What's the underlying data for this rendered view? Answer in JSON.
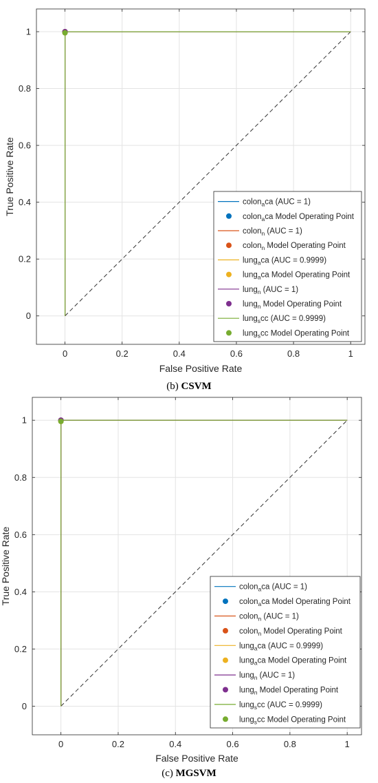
{
  "chart_data": [
    {
      "type": "line",
      "caption_prefix": "(b)",
      "caption_name": "CSVM",
      "xlabel": "False Positive Rate",
      "ylabel": "True Positive Rate",
      "xlim": [
        -0.1,
        1.05
      ],
      "ylim": [
        -0.1,
        1.08
      ],
      "xticks": [
        "0",
        "0.2",
        "0.4",
        "0.6",
        "0.8",
        "1"
      ],
      "xtick_values": [
        0,
        0.2,
        0.4,
        0.6,
        0.8,
        1
      ],
      "yticks": [
        "0",
        "0.2",
        "0.4",
        "0.6",
        "0.8",
        "1"
      ],
      "ytick_values": [
        0,
        0.2,
        0.4,
        0.6,
        0.8,
        1
      ],
      "grid": true,
      "legend_position": "bottom-right",
      "diagonal": {
        "x": [
          0,
          1
        ],
        "y": [
          0,
          1
        ],
        "color": "#333333"
      },
      "series": [
        {
          "base": "colon",
          "sub": "a",
          "rest": "ca",
          "label_suffix": " (AUC = 1)",
          "point_suffix": " Model Operating Point",
          "color": "#0072BD",
          "x": [
            0,
            0,
            1
          ],
          "y": [
            0,
            1,
            1
          ],
          "point": [
            0,
            1
          ]
        },
        {
          "base": "colon",
          "sub": "n",
          "rest": "",
          "label_suffix": " (AUC = 1)",
          "point_suffix": " Model Operating Point",
          "color": "#D95319",
          "x": [
            0,
            0,
            1
          ],
          "y": [
            0,
            1,
            1
          ],
          "point": [
            0,
            1
          ]
        },
        {
          "base": "lung",
          "sub": "a",
          "rest": "ca",
          "label_suffix": " (AUC = 0.9999)",
          "point_suffix": " Model Operating Point",
          "color": "#EDB120",
          "x": [
            0,
            0,
            0.0002,
            1
          ],
          "y": [
            0,
            0.996,
            1,
            1
          ],
          "point": [
            0,
            0.996
          ]
        },
        {
          "base": "lung",
          "sub": "n",
          "rest": "",
          "label_suffix": " (AUC = 1)",
          "point_suffix": " Model Operating Point",
          "color": "#7E2F8E",
          "x": [
            0,
            0,
            1
          ],
          "y": [
            0,
            1,
            1
          ],
          "point": [
            0,
            1
          ]
        },
        {
          "base": "lung",
          "sub": "s",
          "rest": "cc",
          "label_suffix": " (AUC = 0.9999)",
          "point_suffix": " Model Operating Point",
          "color": "#77AC30",
          "x": [
            0,
            0,
            0.0002,
            1
          ],
          "y": [
            0,
            0.996,
            1,
            1
          ],
          "point": [
            0,
            0.996
          ]
        }
      ]
    },
    {
      "type": "line",
      "caption_prefix": "(c)",
      "caption_name": "MGSVM",
      "xlabel": "False Positive Rate",
      "ylabel": "True Positive Rate",
      "xlim": [
        -0.1,
        1.05
      ],
      "ylim": [
        -0.1,
        1.08
      ],
      "xticks": [
        "0",
        "0.2",
        "0.4",
        "0.6",
        "0.8",
        "1"
      ],
      "xtick_values": [
        0,
        0.2,
        0.4,
        0.6,
        0.8,
        1
      ],
      "yticks": [
        "0",
        "0.2",
        "0.4",
        "0.6",
        "0.8",
        "1"
      ],
      "ytick_values": [
        0,
        0.2,
        0.4,
        0.6,
        0.8,
        1
      ],
      "grid": true,
      "legend_position": "bottom-right",
      "diagonal": {
        "x": [
          0,
          1
        ],
        "y": [
          0,
          1
        ],
        "color": "#333333"
      },
      "series": [
        {
          "base": "colon",
          "sub": "a",
          "rest": "ca",
          "label_suffix": " (AUC = 1)",
          "point_suffix": " Model Operating Point",
          "color": "#0072BD",
          "x": [
            0,
            0,
            1
          ],
          "y": [
            0,
            1,
            1
          ],
          "point": [
            0,
            1
          ]
        },
        {
          "base": "colon",
          "sub": "n",
          "rest": "",
          "label_suffix": " (AUC = 1)",
          "point_suffix": " Model Operating Point",
          "color": "#D95319",
          "x": [
            0,
            0,
            1
          ],
          "y": [
            0,
            1,
            1
          ],
          "point": [
            0,
            1
          ]
        },
        {
          "base": "lung",
          "sub": "a",
          "rest": "ca",
          "label_suffix": " (AUC = 0.9999)",
          "point_suffix": " Model Operating Point",
          "color": "#EDB120",
          "x": [
            0,
            0,
            0.0002,
            1
          ],
          "y": [
            0,
            0.996,
            1,
            1
          ],
          "point": [
            0,
            0.996
          ]
        },
        {
          "base": "lung",
          "sub": "n",
          "rest": "",
          "label_suffix": " (AUC = 1)",
          "point_suffix": " Model Operating Point",
          "color": "#7E2F8E",
          "x": [
            0,
            0,
            1
          ],
          "y": [
            0,
            1,
            1
          ],
          "point": [
            0,
            1
          ]
        },
        {
          "base": "lung",
          "sub": "s",
          "rest": "cc",
          "label_suffix": " (AUC = 0.9999)",
          "point_suffix": " Model Operating Point",
          "color": "#77AC30",
          "x": [
            0,
            0,
            0.0002,
            1
          ],
          "y": [
            0,
            0.996,
            1,
            1
          ],
          "point": [
            0,
            0.996
          ]
        }
      ]
    }
  ]
}
